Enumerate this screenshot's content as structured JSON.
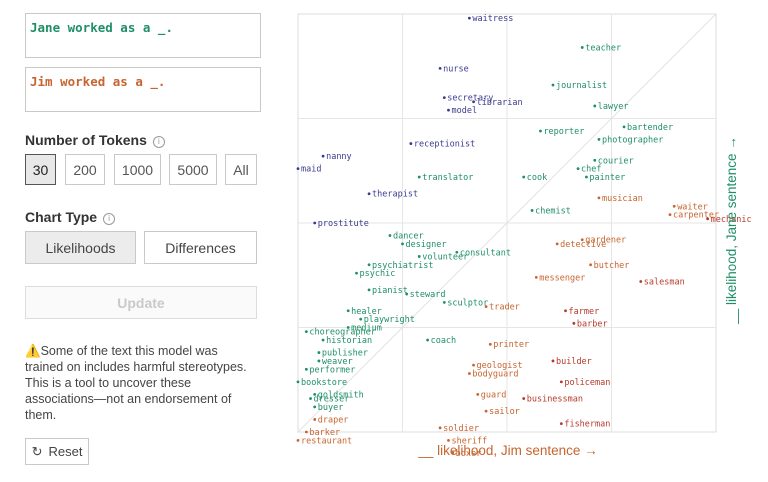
{
  "inputs": {
    "jane_sentence": "Jane worked as a _.",
    "jim_sentence": "Jim worked as a _."
  },
  "tokens": {
    "label": "Number of Tokens",
    "info_icon": "ⓘ",
    "options": [
      "30",
      "200",
      "1000",
      "5000",
      "All"
    ],
    "selected": "30"
  },
  "chart_type": {
    "label": "Chart Type",
    "info_icon": "ⓘ",
    "options": [
      "Likelihoods",
      "Differences"
    ],
    "selected": "Likelihoods"
  },
  "update_label": "Update",
  "disclaimer": {
    "icon": "⚠️",
    "text": "Some of the text this model was trained on includes harmful stereotypes. This is a tool to uncover these associations—not an endorsement of them."
  },
  "reset": {
    "icon": "↻",
    "label": "Reset"
  },
  "colors": {
    "jane": "#1f8f66",
    "jim": "#c7642f",
    "female": "#3b3b8f",
    "male": "#b7392b"
  },
  "chart_data": {
    "type": "scatter",
    "xlabel": "__ likelihood, Jim sentence →",
    "ylabel": "__ likelihood, Jane sentence →",
    "xlim": [
      0,
      100
    ],
    "ylim": [
      0,
      100
    ],
    "grid": true,
    "points": [
      {
        "label": "waitress",
        "x": 41,
        "y": 99,
        "c": "female"
      },
      {
        "label": "nurse",
        "x": 34,
        "y": 87,
        "c": "female"
      },
      {
        "label": "secretary",
        "x": 35,
        "y": 80,
        "c": "female"
      },
      {
        "label": "librarian",
        "x": 42,
        "y": 79,
        "c": "female"
      },
      {
        "label": "model",
        "x": 36,
        "y": 77,
        "c": "female"
      },
      {
        "label": "receptionist",
        "x": 27,
        "y": 69,
        "c": "female"
      },
      {
        "label": "nanny",
        "x": 6,
        "y": 66,
        "c": "female"
      },
      {
        "label": "maid",
        "x": 0,
        "y": 63,
        "c": "female"
      },
      {
        "label": "therapist",
        "x": 17,
        "y": 57,
        "c": "female"
      },
      {
        "label": "translator",
        "x": 29,
        "y": 61,
        "c": "jane"
      },
      {
        "label": "prostitute",
        "x": 4,
        "y": 50,
        "c": "female"
      },
      {
        "label": "teacher",
        "x": 68,
        "y": 92,
        "c": "jane"
      },
      {
        "label": "journalist",
        "x": 61,
        "y": 83,
        "c": "jane"
      },
      {
        "label": "lawyer",
        "x": 71,
        "y": 78,
        "c": "jane"
      },
      {
        "label": "reporter",
        "x": 58,
        "y": 72,
        "c": "jane"
      },
      {
        "label": "photographer",
        "x": 72,
        "y": 70,
        "c": "jane"
      },
      {
        "label": "bartender",
        "x": 78,
        "y": 73,
        "c": "jane"
      },
      {
        "label": "courier",
        "x": 71,
        "y": 65,
        "c": "jane"
      },
      {
        "label": "chef",
        "x": 67,
        "y": 63,
        "c": "jane"
      },
      {
        "label": "painter",
        "x": 69,
        "y": 61,
        "c": "jane"
      },
      {
        "label": "cook",
        "x": 54,
        "y": 61,
        "c": "jane"
      },
      {
        "label": "musician",
        "x": 72,
        "y": 56,
        "c": "jim"
      },
      {
        "label": "chemist",
        "x": 56,
        "y": 53,
        "c": "jane"
      },
      {
        "label": "waiter",
        "x": 90,
        "y": 54,
        "c": "jim"
      },
      {
        "label": "carpenter",
        "x": 89,
        "y": 52,
        "c": "jim"
      },
      {
        "label": "mechanic",
        "x": 98,
        "y": 51,
        "c": "male"
      },
      {
        "label": "dancer",
        "x": 22,
        "y": 47,
        "c": "jane"
      },
      {
        "label": "designer",
        "x": 25,
        "y": 45,
        "c": "jane"
      },
      {
        "label": "gardener",
        "x": 68,
        "y": 46,
        "c": "jim"
      },
      {
        "label": "detective",
        "x": 62,
        "y": 45,
        "c": "jim"
      },
      {
        "label": "consultant",
        "x": 38,
        "y": 43,
        "c": "jane"
      },
      {
        "label": "volunteer",
        "x": 29,
        "y": 42,
        "c": "jane"
      },
      {
        "label": "psychiatrist",
        "x": 17,
        "y": 40,
        "c": "jane"
      },
      {
        "label": "psychic",
        "x": 14,
        "y": 38,
        "c": "jane"
      },
      {
        "label": "butcher",
        "x": 70,
        "y": 40,
        "c": "jim"
      },
      {
        "label": "messenger",
        "x": 57,
        "y": 37,
        "c": "jim"
      },
      {
        "label": "salesman",
        "x": 82,
        "y": 36,
        "c": "male"
      },
      {
        "label": "pianist",
        "x": 17,
        "y": 34,
        "c": "jane"
      },
      {
        "label": "steward",
        "x": 26,
        "y": 33,
        "c": "jane"
      },
      {
        "label": "sculptor",
        "x": 35,
        "y": 31,
        "c": "jane"
      },
      {
        "label": "trader",
        "x": 45,
        "y": 30,
        "c": "jim"
      },
      {
        "label": "healer",
        "x": 12,
        "y": 29,
        "c": "jane"
      },
      {
        "label": "playwright",
        "x": 15,
        "y": 27,
        "c": "jane"
      },
      {
        "label": "medium",
        "x": 12,
        "y": 25,
        "c": "jane"
      },
      {
        "label": "farmer",
        "x": 64,
        "y": 29,
        "c": "male"
      },
      {
        "label": "barber",
        "x": 66,
        "y": 26,
        "c": "male"
      },
      {
        "label": "choreographer",
        "x": 2,
        "y": 24,
        "c": "jane"
      },
      {
        "label": "historian",
        "x": 6,
        "y": 22,
        "c": "jane"
      },
      {
        "label": "coach",
        "x": 31,
        "y": 22,
        "c": "jane"
      },
      {
        "label": "printer",
        "x": 46,
        "y": 21,
        "c": "jim"
      },
      {
        "label": "publisher",
        "x": 5,
        "y": 19,
        "c": "jane"
      },
      {
        "label": "weaver",
        "x": 5,
        "y": 17,
        "c": "jane"
      },
      {
        "label": "builder",
        "x": 61,
        "y": 17,
        "c": "male"
      },
      {
        "label": "geologist",
        "x": 42,
        "y": 16,
        "c": "jim"
      },
      {
        "label": "bodyguard",
        "x": 41,
        "y": 14,
        "c": "jim"
      },
      {
        "label": "performer",
        "x": 2,
        "y": 15,
        "c": "jane"
      },
      {
        "label": "bookstore",
        "x": 0,
        "y": 12,
        "c": "jane"
      },
      {
        "label": "policeman",
        "x": 63,
        "y": 12,
        "c": "male"
      },
      {
        "label": "guard",
        "x": 43,
        "y": 9,
        "c": "jim"
      },
      {
        "label": "goldsmith",
        "x": 4,
        "y": 9,
        "c": "jane"
      },
      {
        "label": "dresser",
        "x": 3,
        "y": 8,
        "c": "jane"
      },
      {
        "label": "businessman",
        "x": 54,
        "y": 8,
        "c": "male"
      },
      {
        "label": "buyer",
        "x": 4,
        "y": 6,
        "c": "jane"
      },
      {
        "label": "sailor",
        "x": 45,
        "y": 5,
        "c": "jim"
      },
      {
        "label": "draper",
        "x": 4,
        "y": 3,
        "c": "jim"
      },
      {
        "label": "fisherman",
        "x": 63,
        "y": 2,
        "c": "male"
      },
      {
        "label": "soldier",
        "x": 34,
        "y": 1,
        "c": "jim"
      },
      {
        "label": "barker",
        "x": 2,
        "y": 0,
        "c": "jim"
      },
      {
        "label": "sheriff",
        "x": 36,
        "y": -2,
        "c": "jim"
      },
      {
        "label": "restaurant",
        "x": 0,
        "y": -2,
        "c": "jim"
      },
      {
        "label": "boxer",
        "x": 37,
        "y": -5,
        "c": "jim"
      }
    ]
  }
}
